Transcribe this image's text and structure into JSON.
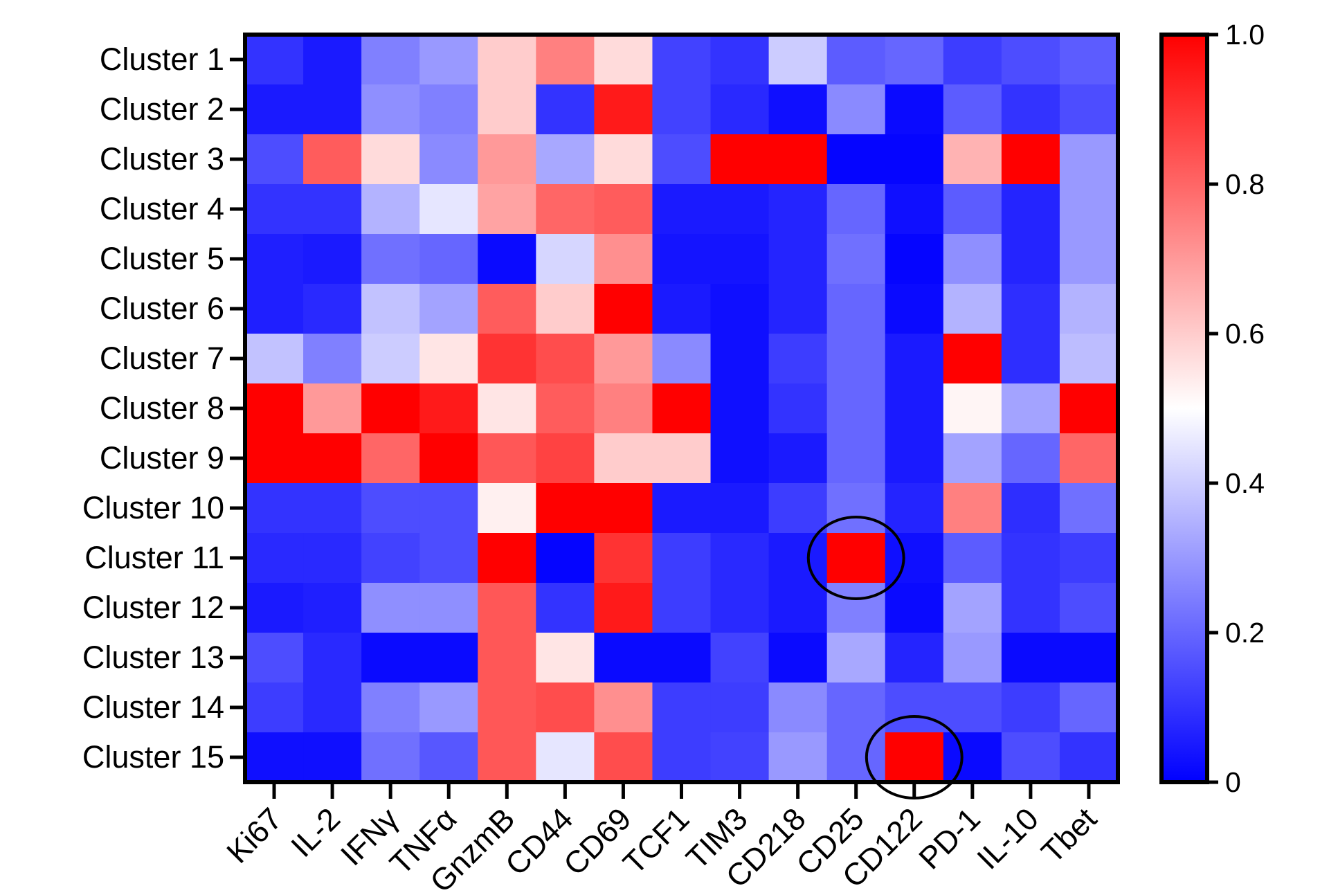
{
  "chart_data": {
    "type": "heatmap",
    "title": "",
    "xlabel": "",
    "ylabel": "",
    "rows": [
      "Cluster 1",
      "Cluster 2",
      "Cluster 3",
      "Cluster 4",
      "Cluster 5",
      "Cluster 6",
      "Cluster 7",
      "Cluster 8",
      "Cluster 9",
      "Cluster 10",
      "Cluster 11",
      "Cluster 12",
      "Cluster 13",
      "Cluster 14",
      "Cluster 15"
    ],
    "columns": [
      "Ki67",
      "IL-2",
      "IFNγ",
      "TNFα",
      "GnzmB",
      "CD44",
      "CD69",
      "TCF1",
      "TIM3",
      "CD218",
      "CD25",
      "CD122",
      "PD-1",
      "IL-10",
      "Tbet"
    ],
    "values": [
      [
        0.1,
        0.05,
        0.25,
        0.3,
        0.6,
        0.75,
        0.57,
        0.13,
        0.1,
        0.4,
        0.18,
        0.2,
        0.12,
        0.15,
        0.18
      ],
      [
        0.05,
        0.05,
        0.28,
        0.25,
        0.6,
        0.1,
        0.95,
        0.13,
        0.08,
        0.03,
        0.27,
        0.02,
        0.18,
        0.1,
        0.15
      ],
      [
        0.15,
        0.82,
        0.57,
        0.27,
        0.7,
        0.33,
        0.57,
        0.15,
        1.0,
        1.0,
        0.01,
        0.01,
        0.65,
        1.0,
        0.3
      ],
      [
        0.1,
        0.1,
        0.35,
        0.45,
        0.68,
        0.8,
        0.82,
        0.05,
        0.05,
        0.07,
        0.2,
        0.03,
        0.18,
        0.07,
        0.3
      ],
      [
        0.06,
        0.05,
        0.22,
        0.2,
        0.02,
        0.42,
        0.72,
        0.04,
        0.04,
        0.07,
        0.22,
        0.01,
        0.28,
        0.07,
        0.3
      ],
      [
        0.06,
        0.08,
        0.38,
        0.32,
        0.82,
        0.6,
        1.0,
        0.05,
        0.03,
        0.07,
        0.2,
        0.02,
        0.35,
        0.09,
        0.35
      ],
      [
        0.38,
        0.25,
        0.4,
        0.55,
        0.9,
        0.85,
        0.7,
        0.27,
        0.03,
        0.12,
        0.2,
        0.05,
        1.0,
        0.09,
        0.37
      ],
      [
        1.0,
        0.7,
        1.0,
        0.95,
        0.55,
        0.82,
        0.75,
        1.0,
        0.03,
        0.1,
        0.2,
        0.05,
        0.52,
        0.32,
        1.0
      ],
      [
        1.0,
        1.0,
        0.8,
        1.0,
        0.83,
        0.87,
        0.6,
        0.6,
        0.03,
        0.05,
        0.2,
        0.05,
        0.32,
        0.2,
        0.8
      ],
      [
        0.1,
        0.1,
        0.15,
        0.15,
        0.53,
        1.0,
        1.0,
        0.05,
        0.05,
        0.12,
        0.22,
        0.07,
        0.75,
        0.09,
        0.22
      ],
      [
        0.08,
        0.08,
        0.13,
        0.15,
        1.0,
        0.01,
        0.9,
        0.12,
        0.08,
        0.05,
        1.0,
        0.03,
        0.18,
        0.1,
        0.12
      ],
      [
        0.05,
        0.06,
        0.28,
        0.28,
        0.83,
        0.1,
        0.95,
        0.12,
        0.08,
        0.05,
        0.25,
        0.02,
        0.32,
        0.1,
        0.15
      ],
      [
        0.15,
        0.08,
        0.02,
        0.02,
        0.83,
        0.55,
        0.02,
        0.02,
        0.13,
        0.02,
        0.33,
        0.07,
        0.3,
        0.02,
        0.02
      ],
      [
        0.12,
        0.08,
        0.25,
        0.3,
        0.83,
        0.85,
        0.72,
        0.12,
        0.12,
        0.27,
        0.2,
        0.15,
        0.15,
        0.12,
        0.2
      ],
      [
        0.03,
        0.03,
        0.22,
        0.17,
        0.83,
        0.45,
        0.85,
        0.12,
        0.13,
        0.3,
        0.2,
        1.0,
        0.02,
        0.15,
        0.1
      ]
    ],
    "color_scale": {
      "min": 0,
      "max": 1,
      "low": "#0000ff",
      "mid": "#ffffff",
      "high": "#ff0000"
    },
    "colorbar": {
      "ticks": [
        0,
        0.2,
        0.4,
        0.6,
        0.8,
        1.0
      ],
      "tick_labels": [
        "0",
        "0.2",
        "0.4",
        "0.6",
        "0.8",
        "1.0"
      ]
    },
    "annotations": [
      {
        "shape": "circle",
        "row": "Cluster 11",
        "column": "CD25"
      },
      {
        "shape": "circle",
        "row": "Cluster 15",
        "column": "CD122"
      }
    ]
  }
}
